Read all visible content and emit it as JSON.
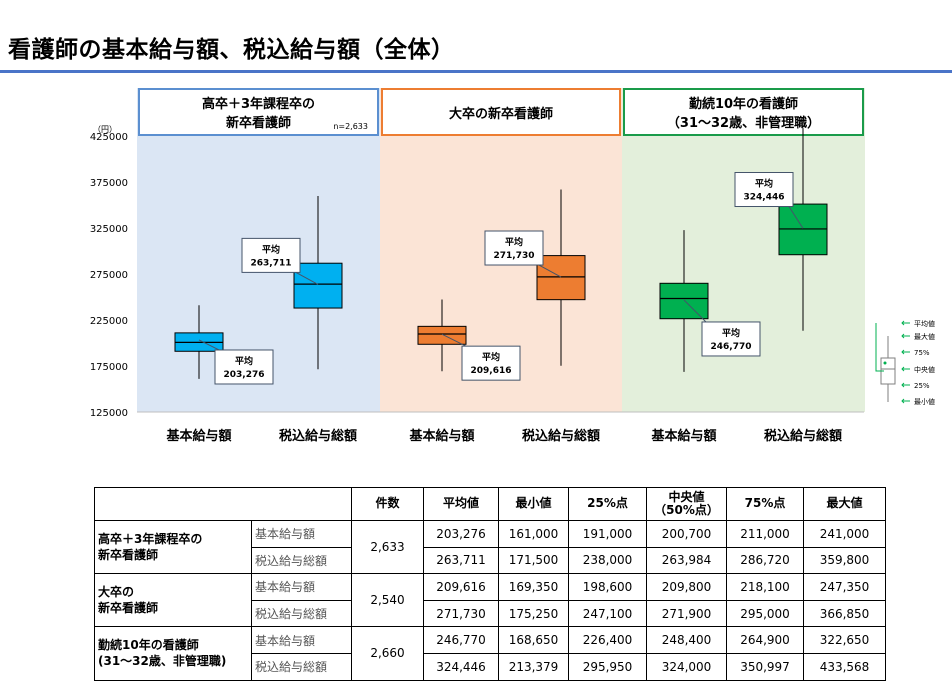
{
  "page": {
    "title": "看護師の基本給与額、税込給与額（全体）"
  },
  "colors": {
    "title_rule": "#4a74c8",
    "group1_bg": "#dbe6f4",
    "group2_bg": "#fbe4d6",
    "group3_bg": "#e3efdb",
    "group1_border": "#5b8fd0",
    "group2_border": "#ed7d31",
    "group3_border": "#1a9b4a",
    "group1_box": "#00b0f0",
    "group2_box": "#ed7d31",
    "group3_box": "#00b050"
  },
  "chart_data": {
    "type": "boxplot",
    "y_unit": "（円）",
    "ylim": [
      125000,
      425000
    ],
    "yticks": [
      "425000",
      "375000",
      "325000",
      "275000",
      "225000",
      "175000",
      "125000"
    ],
    "groups": [
      {
        "title_line1": "高卒＋3年課程卒の",
        "title_line2": "新卒看護師",
        "n": "n=2,633",
        "categories": [
          "基本給与額",
          "税込給与総額"
        ],
        "boxes": [
          {
            "min": 161000,
            "q1": 191000,
            "median": 200700,
            "q3": 211000,
            "max": 241000,
            "mean": 203276,
            "mean_label_1": "平均",
            "mean_label_2": "203,276"
          },
          {
            "min": 171500,
            "q1": 238000,
            "median": 263984,
            "q3": 286720,
            "max": 359800,
            "mean": 263711,
            "mean_label_1": "平均",
            "mean_label_2": "263,711"
          }
        ]
      },
      {
        "title_line1": "大卒の新卒看護師",
        "title_line2": "",
        "n": "",
        "categories": [
          "基本給与額",
          "税込給与総額"
        ],
        "boxes": [
          {
            "min": 169350,
            "q1": 198600,
            "median": 209800,
            "q3": 218100,
            "max": 247350,
            "mean": 209616,
            "mean_label_1": "平均",
            "mean_label_2": "209,616"
          },
          {
            "min": 175250,
            "q1": 247100,
            "median": 271900,
            "q3": 295000,
            "max": 366850,
            "mean": 271730,
            "mean_label_1": "平均",
            "mean_label_2": "271,730"
          }
        ]
      },
      {
        "title_line1": "勤続10年の看護師",
        "title_line2": "（31～32歳、非管理職）",
        "n": "",
        "categories": [
          "基本給与額",
          "税込給与総額"
        ],
        "boxes": [
          {
            "min": 168650,
            "q1": 226400,
            "median": 248400,
            "q3": 264900,
            "max": 322650,
            "mean": 246770,
            "mean_label_1": "平均",
            "mean_label_2": "246,770"
          },
          {
            "min": 213379,
            "q1": 295950,
            "median": 324000,
            "q3": 350997,
            "max": 433568,
            "mean": 324446,
            "mean_label_1": "平均",
            "mean_label_2": "324,446"
          }
        ]
      }
    ],
    "legend": [
      "平均値",
      "最大値",
      "75%",
      "中央値",
      "25%",
      "最小値"
    ]
  },
  "table": {
    "headers": [
      "件数",
      "平均値",
      "最小値",
      "25%点",
      "中央値",
      "（50%点）",
      "75%点",
      "最大値"
    ],
    "rows": [
      {
        "group_1": "高卒＋3年課程卒の",
        "group_2": "新卒看護師",
        "count": "2,633",
        "r1": {
          "kind": "基本給与額",
          "mean": "203,276",
          "min": "161,000",
          "p25": "191,000",
          "median": "200,700",
          "p75": "211,000",
          "max": "241,000"
        },
        "r2": {
          "kind": "税込給与総額",
          "mean": "263,711",
          "min": "171,500",
          "p25": "238,000",
          "median": "263,984",
          "p75": "286,720",
          "max": "359,800"
        }
      },
      {
        "group_1": "大卒の",
        "group_2": "新卒看護師",
        "count": "2,540",
        "r1": {
          "kind": "基本給与額",
          "mean": "209,616",
          "min": "169,350",
          "p25": "198,600",
          "median": "209,800",
          "p75": "218,100",
          "max": "247,350"
        },
        "r2": {
          "kind": "税込給与総額",
          "mean": "271,730",
          "min": "175,250",
          "p25": "247,100",
          "median": "271,900",
          "p75": "295,000",
          "max": "366,850"
        }
      },
      {
        "group_1": "勤続10年の看護師",
        "group_2": "(31～32歳、非管理職)",
        "count": "2,660",
        "r1": {
          "kind": "基本給与額",
          "mean": "246,770",
          "min": "168,650",
          "p25": "226,400",
          "median": "248,400",
          "p75": "264,900",
          "max": "322,650"
        },
        "r2": {
          "kind": "税込給与総額",
          "mean": "324,446",
          "min": "213,379",
          "p25": "295,950",
          "median": "324,000",
          "p75": "350,997",
          "max": "433,568"
        }
      }
    ]
  }
}
